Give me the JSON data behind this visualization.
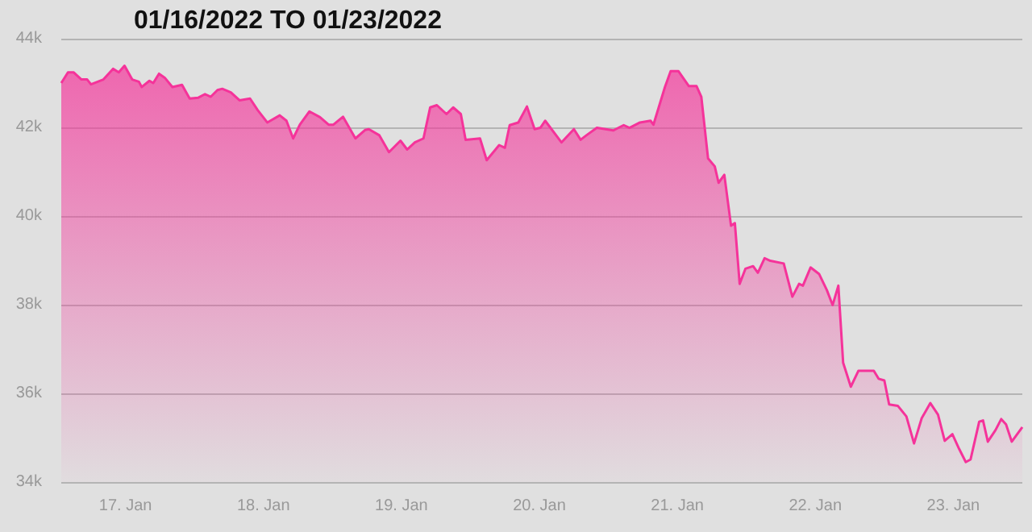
{
  "chart_data": {
    "type": "area",
    "title": "01/16/2022 TO 01/23/2022",
    "x": [
      "2022-01-16T12:50",
      "2022-01-16T14:00",
      "2022-01-16T15:00",
      "2022-01-16T16:20",
      "2022-01-16T17:20",
      "2022-01-16T18:00",
      "2022-01-16T20:10",
      "2022-01-16T21:50",
      "2022-01-16T22:50",
      "2022-01-16T23:50",
      "2022-01-17T01:10",
      "2022-01-17T02:20",
      "2022-01-17T02:50",
      "2022-01-17T04:10",
      "2022-01-17T04:50",
      "2022-01-17T05:50",
      "2022-01-17T06:50",
      "2022-01-17T08:10",
      "2022-01-17T09:50",
      "2022-01-17T11:10",
      "2022-01-17T12:40",
      "2022-01-17T13:50",
      "2022-01-17T14:50",
      "2022-01-17T16:00",
      "2022-01-17T16:50",
      "2022-01-17T18:20",
      "2022-01-17T19:50",
      "2022-01-17T21:40",
      "2022-01-17T23:00",
      "2022-01-18T00:40",
      "2022-01-18T02:50",
      "2022-01-18T04:00",
      "2022-01-18T05:10",
      "2022-01-18T06:20",
      "2022-01-18T08:00",
      "2022-01-18T09:50",
      "2022-01-18T11:20",
      "2022-01-18T12:10",
      "2022-01-18T13:50",
      "2022-01-18T16:00",
      "2022-01-18T17:40",
      "2022-01-18T18:20",
      "2022-01-18T20:10",
      "2022-01-18T21:50",
      "2022-01-18T23:50",
      "2022-01-19T01:00",
      "2022-01-19T02:20",
      "2022-01-19T03:50",
      "2022-01-19T05:00",
      "2022-01-19T06:10",
      "2022-01-19T07:50",
      "2022-01-19T09:00",
      "2022-01-19T10:20",
      "2022-01-19T11:10",
      "2022-01-19T13:40",
      "2022-01-19T14:50",
      "2022-01-19T17:00",
      "2022-01-19T18:00",
      "2022-01-19T18:50",
      "2022-01-19T20:20",
      "2022-01-19T21:50",
      "2022-01-19T23:10",
      "2022-01-20T00:10",
      "2022-01-20T01:00",
      "2022-01-20T03:50",
      "2022-01-20T06:00",
      "2022-01-20T07:10",
      "2022-01-20T08:10",
      "2022-01-20T10:00",
      "2022-01-20T12:50",
      "2022-01-20T14:40",
      "2022-01-20T15:40",
      "2022-01-20T17:30",
      "2022-01-20T19:20",
      "2022-01-20T19:50",
      "2022-01-20T21:50",
      "2022-01-20T22:50",
      "2022-01-21T00:10",
      "2022-01-21T02:00",
      "2022-01-21T03:20",
      "2022-01-21T04:10",
      "2022-01-21T05:20",
      "2022-01-21T06:30",
      "2022-01-21T07:10",
      "2022-01-21T08:10",
      "2022-01-21T09:20",
      "2022-01-21T10:00",
      "2022-01-21T10:50",
      "2022-01-21T11:50",
      "2022-01-21T13:10",
      "2022-01-21T14:00",
      "2022-01-21T15:10",
      "2022-01-21T16:10",
      "2022-01-21T18:30",
      "2022-01-21T20:00",
      "2022-01-21T21:10",
      "2022-01-21T21:50",
      "2022-01-21T23:10",
      "2022-01-22T00:40",
      "2022-01-22T02:00",
      "2022-01-22T03:00",
      "2022-01-22T04:00",
      "2022-01-22T04:50",
      "2022-01-22T06:10",
      "2022-01-22T07:30",
      "2022-01-22T10:10",
      "2022-01-22T11:00",
      "2022-01-22T12:00",
      "2022-01-22T12:50",
      "2022-01-22T14:20",
      "2022-01-22T15:50",
      "2022-01-22T17:10",
      "2022-01-22T18:30",
      "2022-01-22T20:00",
      "2022-01-22T21:20",
      "2022-01-22T22:30",
      "2022-01-22T23:50",
      "2022-01-23T01:00",
      "2022-01-23T02:10",
      "2022-01-23T03:00",
      "2022-01-23T04:30",
      "2022-01-23T05:10",
      "2022-01-23T06:00",
      "2022-01-23T07:20",
      "2022-01-23T08:20",
      "2022-01-23T09:10",
      "2022-01-23T10:10",
      "2022-01-23T12:00"
    ],
    "series": [
      {
        "color": "#f5339a",
        "values": [
          43000,
          43240,
          43240,
          43080,
          43080,
          42970,
          43080,
          43320,
          43240,
          43390,
          43080,
          43030,
          42910,
          43050,
          43000,
          43210,
          43120,
          42910,
          42960,
          42650,
          42670,
          42750,
          42690,
          42840,
          42870,
          42790,
          42610,
          42650,
          42390,
          42110,
          42270,
          42150,
          41750,
          42060,
          42360,
          42230,
          42060,
          42060,
          42240,
          41750,
          41940,
          41960,
          41820,
          41440,
          41700,
          41500,
          41660,
          41750,
          42450,
          42500,
          42300,
          42450,
          42300,
          41720,
          41750,
          41260,
          41600,
          41540,
          42050,
          42110,
          42470,
          41960,
          41990,
          42150,
          41660,
          41960,
          41720,
          41820,
          41990,
          41930,
          42050,
          41990,
          42110,
          42150,
          42060,
          42910,
          43270,
          43270,
          42930,
          42930,
          42690,
          41300,
          41120,
          40750,
          40930,
          39780,
          39840,
          38470,
          38810,
          38870,
          38720,
          39050,
          38990,
          38930,
          38180,
          38470,
          38430,
          38840,
          38690,
          38330,
          37990,
          38430,
          36690,
          36150,
          36510,
          36510,
          36330,
          36290,
          35750,
          35720,
          35480,
          34870,
          35440,
          35780,
          35520,
          34930,
          35080,
          34750,
          34450,
          34510,
          35360,
          35390,
          34910,
          35170,
          35420,
          35300,
          34910,
          35240
        ]
      }
    ],
    "xlim": [
      "2022-01-16T12:50",
      "2022-01-23T12:00"
    ],
    "xticks": [
      {
        "value": "2022-01-17",
        "label": "17. Jan"
      },
      {
        "value": "2022-01-18",
        "label": "18. Jan"
      },
      {
        "value": "2022-01-19",
        "label": "19. Jan"
      },
      {
        "value": "2022-01-20",
        "label": "20. Jan"
      },
      {
        "value": "2022-01-21",
        "label": "21. Jan"
      },
      {
        "value": "2022-01-22",
        "label": "22. Jan"
      },
      {
        "value": "2022-01-23",
        "label": "23. Jan"
      }
    ],
    "ylim": [
      34000,
      44000
    ],
    "yticks": [
      {
        "value": 34000,
        "label": "34k"
      },
      {
        "value": 36000,
        "label": "36k"
      },
      {
        "value": 38000,
        "label": "38k"
      },
      {
        "value": 40000,
        "label": "40k"
      },
      {
        "value": 42000,
        "label": "42k"
      },
      {
        "value": 44000,
        "label": "44k"
      }
    ],
    "grid": "y"
  }
}
